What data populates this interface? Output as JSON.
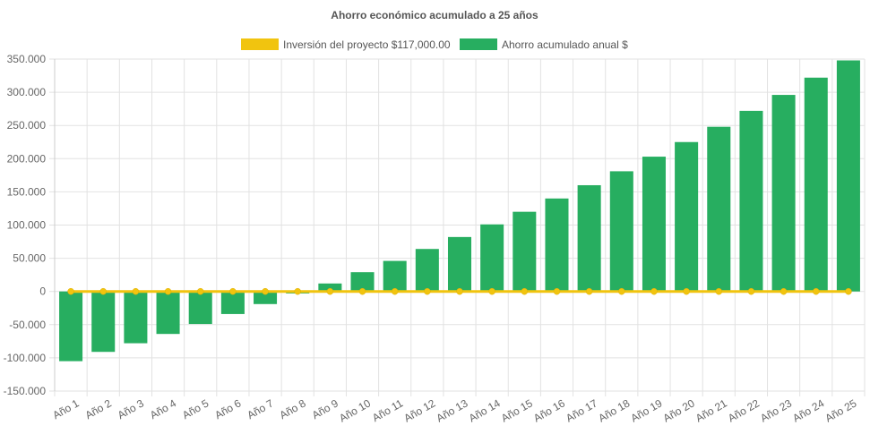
{
  "chart_data": {
    "type": "bar",
    "title": "Ahorro económico acumulado a 25 años",
    "categories": [
      "Año 1",
      "Año 2",
      "Año 3",
      "Año 4",
      "Año 5",
      "Año 6",
      "Año 7",
      "Año 8",
      "Año 9",
      "Año 10",
      "Año 11",
      "Año 12",
      "Año 13",
      "Año 14",
      "Año 15",
      "Año 16",
      "Año 17",
      "Año 18",
      "Año 19",
      "Año 20",
      "Año 21",
      "Año 22",
      "Año 23",
      "Año 24",
      "Año 25"
    ],
    "series": [
      {
        "name": "Inversión del proyecto $117,000.00",
        "kind": "line",
        "color": "#f1c40f",
        "values": [
          0,
          0,
          0,
          0,
          0,
          0,
          0,
          0,
          0,
          0,
          0,
          0,
          0,
          0,
          0,
          0,
          0,
          0,
          0,
          0,
          0,
          0,
          0,
          0,
          0
        ]
      },
      {
        "name": "Ahorro acumulado anual $",
        "kind": "bar",
        "color": "#27ae60",
        "values": [
          -105000,
          -91000,
          -78000,
          -64000,
          -49000,
          -34000,
          -19000,
          -3000,
          12000,
          29000,
          46000,
          64000,
          82000,
          101000,
          120000,
          140000,
          160000,
          181000,
          203000,
          225000,
          248000,
          272000,
          296000,
          322000,
          348000
        ]
      }
    ],
    "ylim": [
      -150000,
      350000
    ],
    "yticks": [
      {
        "value": 350000,
        "label": "350.000"
      },
      {
        "value": 300000,
        "label": "300.000"
      },
      {
        "value": 250000,
        "label": "250.000"
      },
      {
        "value": 200000,
        "label": "200.000"
      },
      {
        "value": 150000,
        "label": "150.000"
      },
      {
        "value": 100000,
        "label": "100.000"
      },
      {
        "value": 50000,
        "label": "50.000"
      },
      {
        "value": 0,
        "label": "0"
      },
      {
        "value": -50000,
        "label": "-50.000"
      },
      {
        "value": -100000,
        "label": "-100.000"
      },
      {
        "value": -150000,
        "label": "-150.000"
      }
    ],
    "grid": true,
    "legend_position": "top"
  }
}
